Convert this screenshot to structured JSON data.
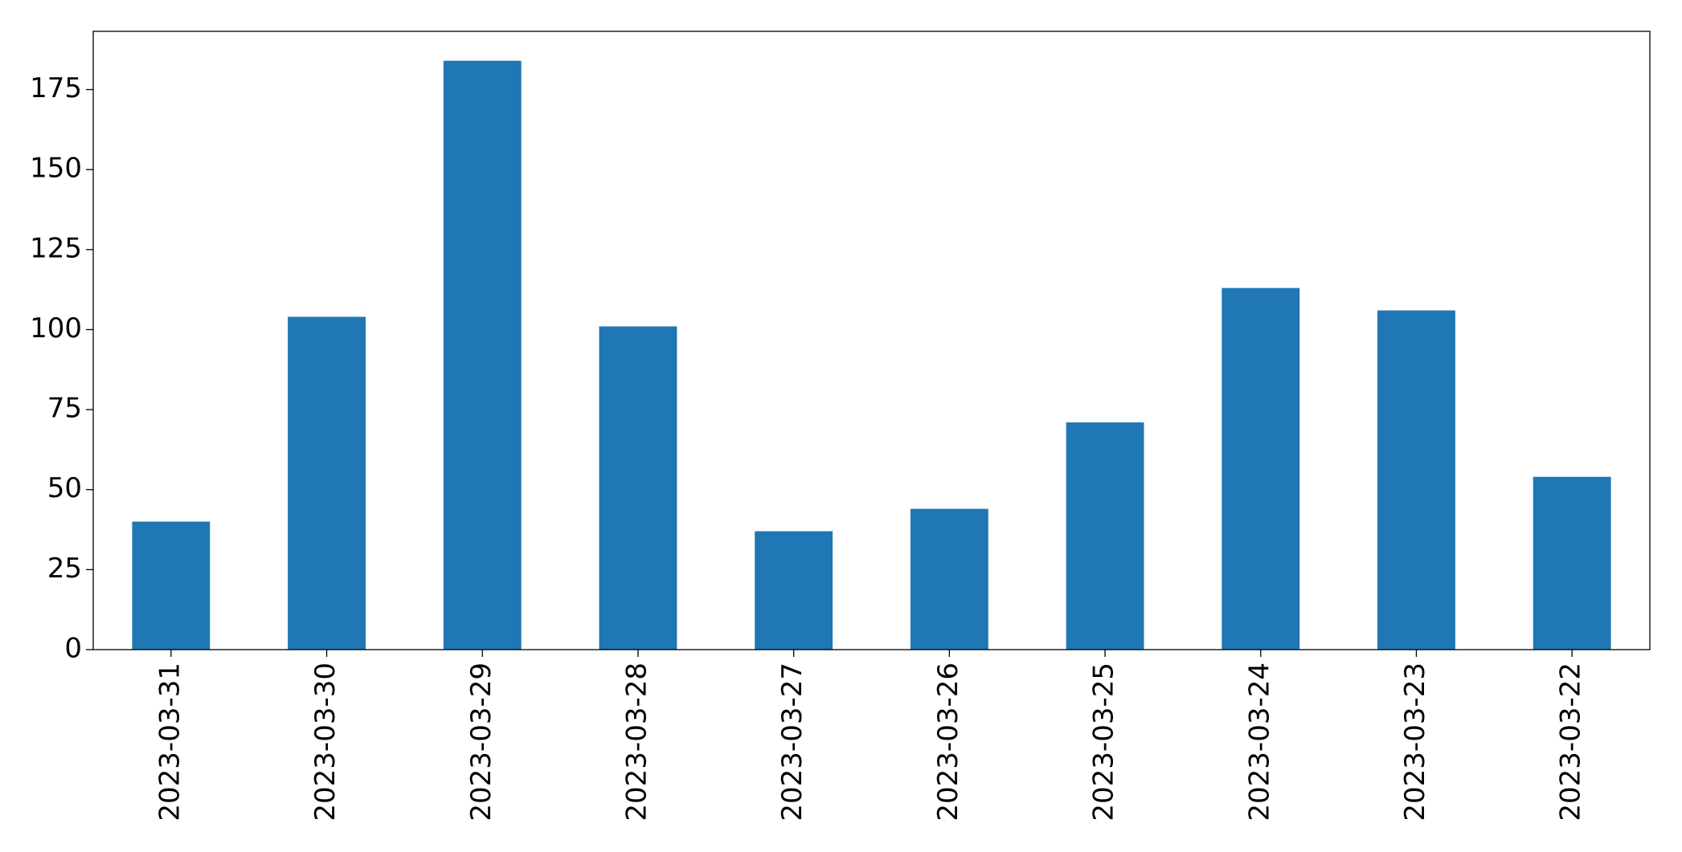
{
  "chart_data": {
    "type": "bar",
    "categories": [
      "2023-03-31",
      "2023-03-30",
      "2023-03-29",
      "2023-03-28",
      "2023-03-27",
      "2023-03-26",
      "2023-03-25",
      "2023-03-24",
      "2023-03-23",
      "2023-03-22"
    ],
    "values": [
      40,
      104,
      184,
      101,
      37,
      44,
      71,
      113,
      106,
      54
    ],
    "color": "#1f77b4",
    "ylim": [
      0,
      193.2
    ],
    "yticks": [
      0,
      25,
      50,
      75,
      100,
      125,
      150,
      175
    ],
    "grid": false
  }
}
